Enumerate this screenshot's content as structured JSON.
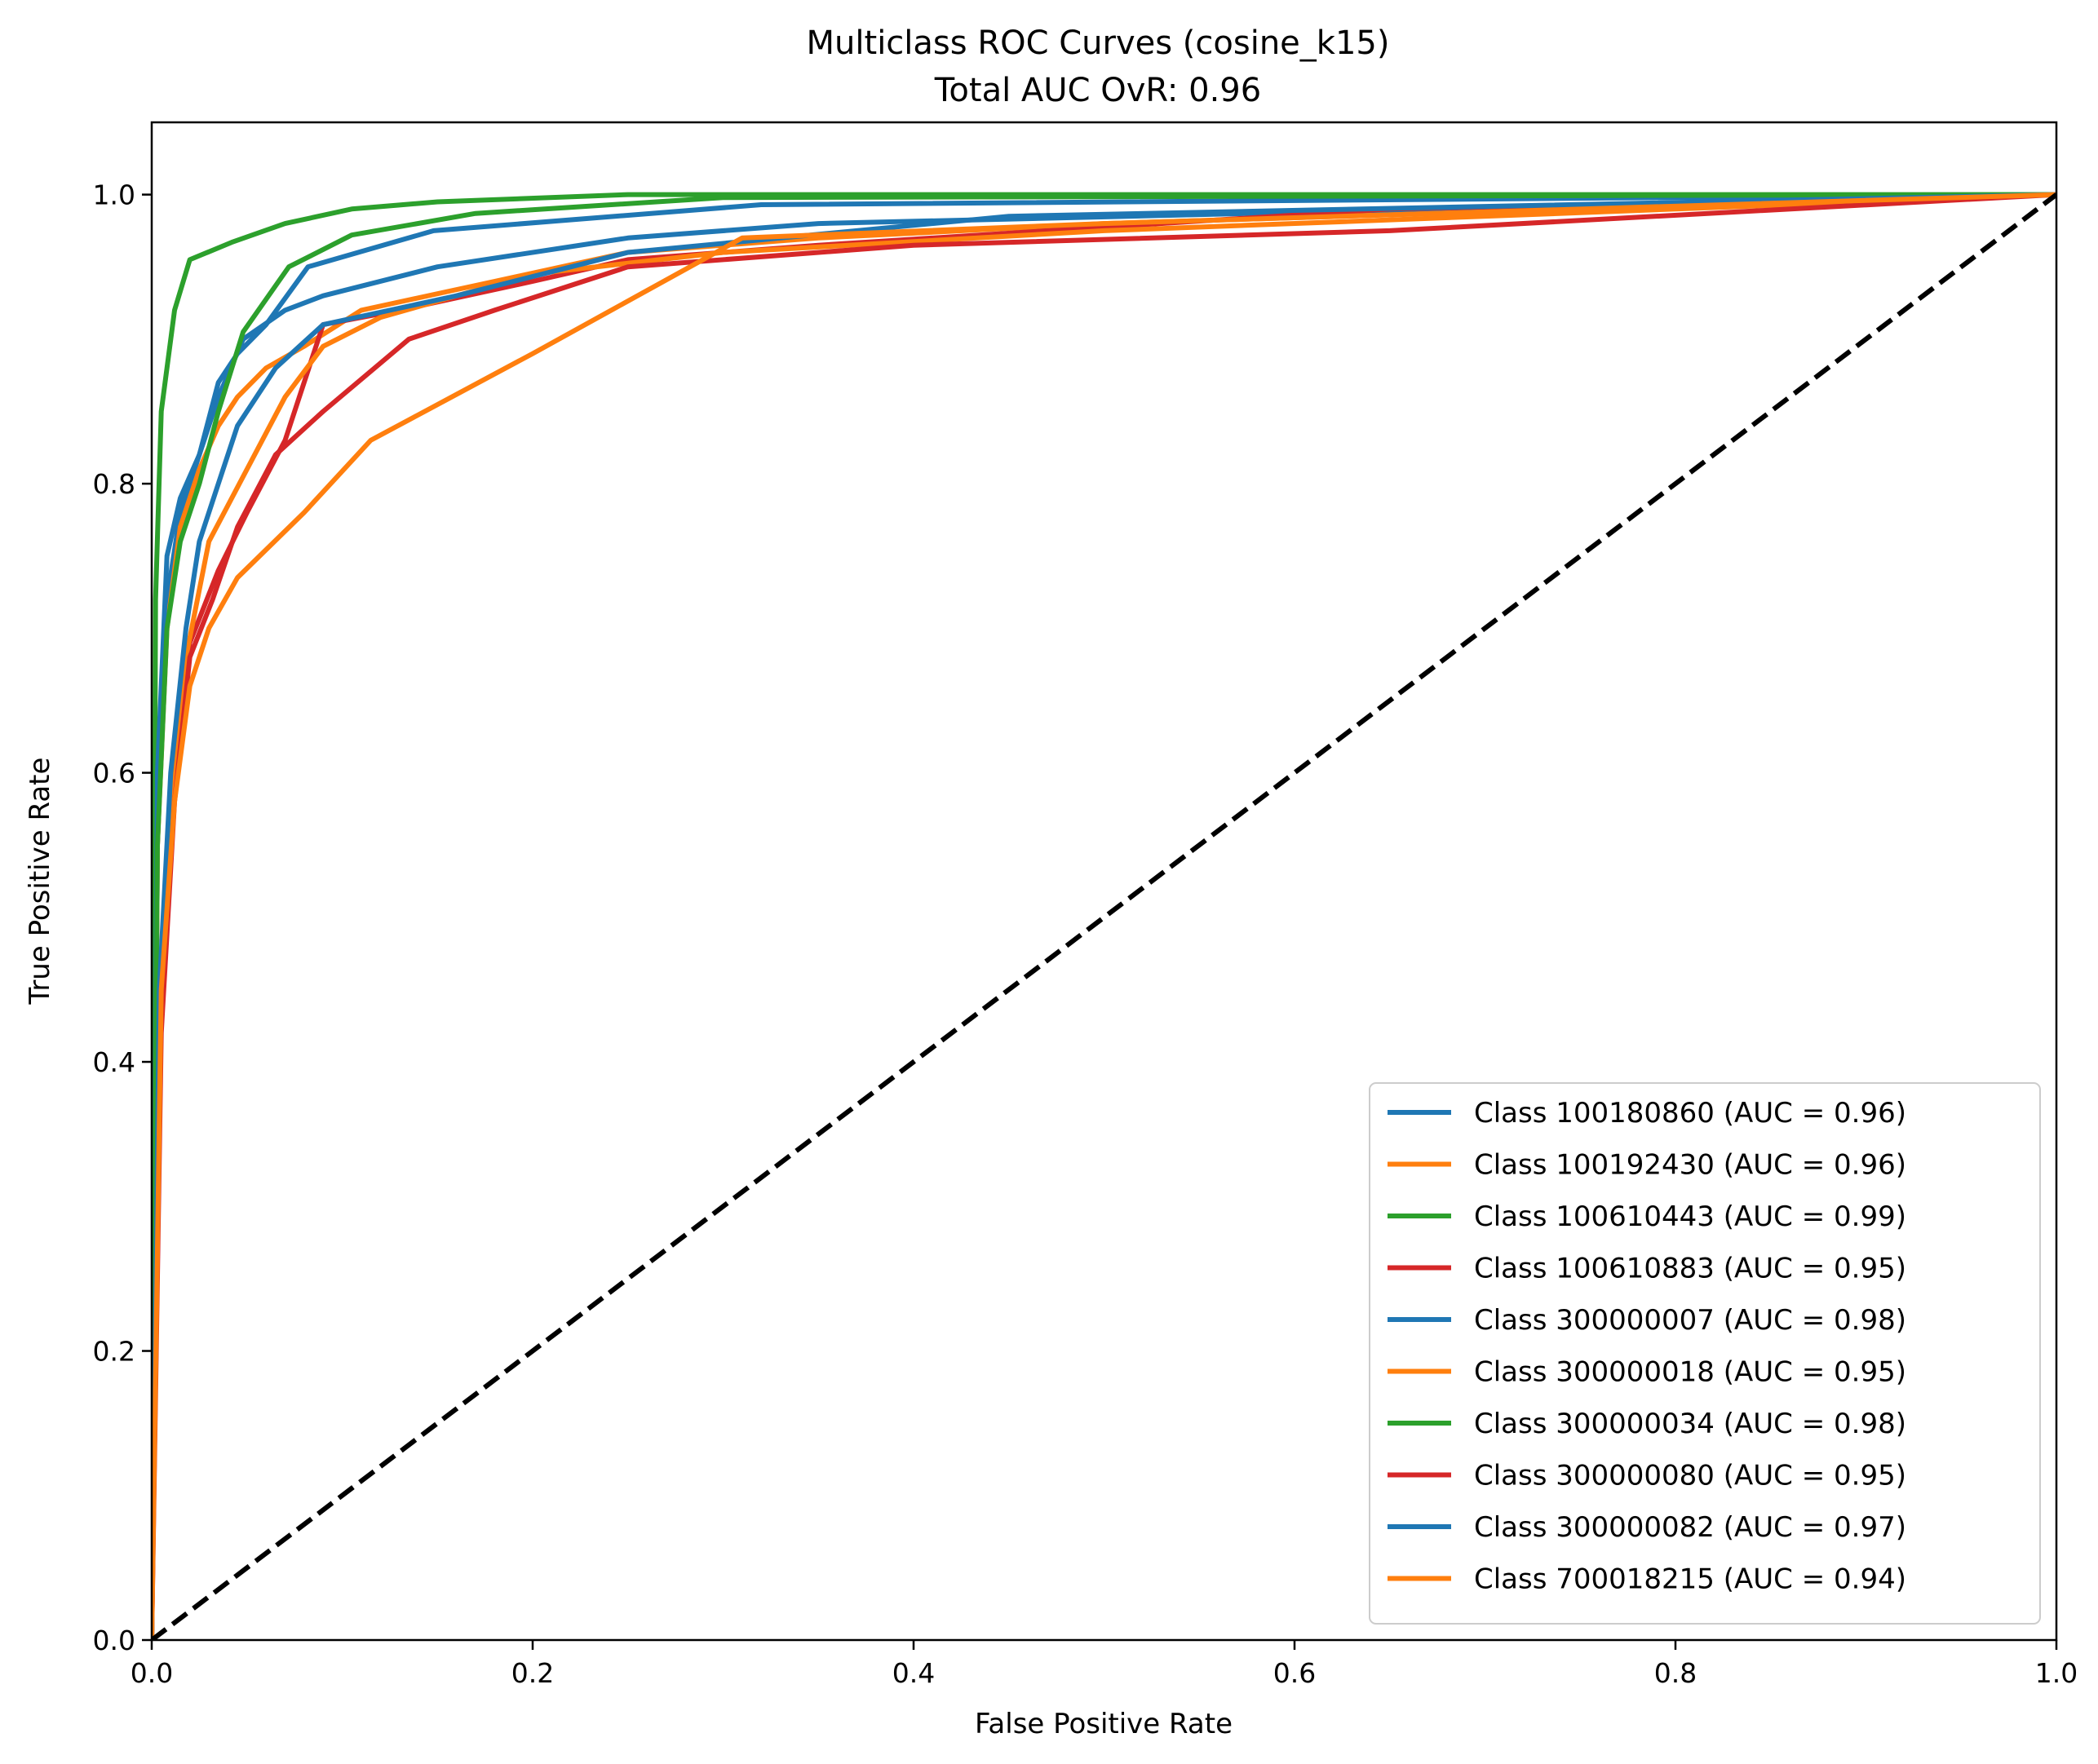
{
  "chart_data": {
    "type": "line",
    "title": "Multiclass ROC Curves (cosine_k15)",
    "subtitle": "Total AUC OvR: 0.96",
    "xlabel": "False Positive Rate",
    "ylabel": "True Positive Rate",
    "xlim": [
      0.0,
      1.0
    ],
    "ylim": [
      0.0,
      1.05
    ],
    "xticks": [
      "0.0",
      "0.2",
      "0.4",
      "0.6",
      "0.8",
      "1.0"
    ],
    "yticks": [
      "0.0",
      "0.2",
      "0.4",
      "0.6",
      "0.8",
      "1.0"
    ],
    "grid": false,
    "legend_position": "lower-right",
    "reference_line": {
      "x": [
        0,
        1
      ],
      "y": [
        0,
        1
      ],
      "color": "#000000",
      "style": "dashed"
    },
    "series": [
      {
        "name": "Class 100180860 (AUC = 0.96)",
        "color": "#1f77b4",
        "x": [
          0,
          0.003,
          0.008,
          0.015,
          0.025,
          0.035,
          0.048,
          0.07,
          0.09,
          0.15,
          0.25,
          0.35,
          1.0
        ],
        "y": [
          0,
          0.55,
          0.72,
          0.78,
          0.82,
          0.86,
          0.9,
          0.92,
          0.93,
          0.95,
          0.97,
          0.98,
          1.0
        ]
      },
      {
        "name": "Class 100192430 (AUC = 0.96)",
        "color": "#ff7f0e",
        "x": [
          0,
          0.003,
          0.008,
          0.015,
          0.025,
          0.035,
          0.045,
          0.06,
          0.08,
          0.11,
          0.18,
          0.25,
          0.35,
          0.5,
          1.0
        ],
        "y": [
          0,
          0.55,
          0.7,
          0.77,
          0.81,
          0.84,
          0.86,
          0.88,
          0.895,
          0.92,
          0.94,
          0.96,
          0.97,
          0.98,
          1.0
        ]
      },
      {
        "name": "Class 100610443 (AUC = 0.99)",
        "color": "#2ca02c",
        "x": [
          0,
          0.002,
          0.005,
          0.012,
          0.02,
          0.042,
          0.07,
          0.105,
          0.15,
          0.25,
          1.0
        ],
        "y": [
          0,
          0.72,
          0.85,
          0.92,
          0.955,
          0.967,
          0.98,
          0.99,
          0.995,
          1.0,
          1.0
        ]
      },
      {
        "name": "Class 100610883 (AUC = 0.95)",
        "color": "#d62728",
        "x": [
          0,
          0.004,
          0.01,
          0.02,
          0.035,
          0.05,
          0.07,
          0.09,
          0.13,
          0.2,
          0.25,
          0.35,
          0.65,
          1.0
        ],
        "y": [
          0,
          0.4,
          0.58,
          0.69,
          0.74,
          0.78,
          0.83,
          0.91,
          0.92,
          0.94,
          0.955,
          0.965,
          0.99,
          1.0
        ]
      },
      {
        "name": "Class 300000007 (AUC = 0.98)",
        "color": "#1f77b4",
        "x": [
          0,
          0.003,
          0.008,
          0.015,
          0.025,
          0.035,
          0.045,
          0.06,
          0.082,
          0.148,
          0.32,
          1.0
        ],
        "y": [
          0,
          0.6,
          0.75,
          0.79,
          0.82,
          0.87,
          0.89,
          0.91,
          0.95,
          0.975,
          0.993,
          1.0
        ]
      },
      {
        "name": "Class 300000018 (AUC = 0.95)",
        "color": "#ff7f0e",
        "x": [
          0,
          0.004,
          0.01,
          0.018,
          0.03,
          0.05,
          0.07,
          0.09,
          0.12,
          0.2,
          0.3,
          0.5,
          1.0
        ],
        "y": [
          0,
          0.42,
          0.57,
          0.68,
          0.76,
          0.81,
          0.86,
          0.895,
          0.915,
          0.945,
          0.96,
          0.975,
          1.0
        ]
      },
      {
        "name": "Class 300000034 (AUC = 0.98)",
        "color": "#2ca02c",
        "x": [
          0,
          0.003,
          0.008,
          0.015,
          0.025,
          0.035,
          0.048,
          0.072,
          0.105,
          0.17,
          0.3,
          1.0
        ],
        "y": [
          0,
          0.55,
          0.7,
          0.76,
          0.8,
          0.85,
          0.905,
          0.95,
          0.972,
          0.987,
          0.998,
          1.0
        ]
      },
      {
        "name": "Class 300000080 (AUC = 0.95)",
        "color": "#d62728",
        "x": [
          0,
          0.005,
          0.012,
          0.02,
          0.032,
          0.045,
          0.065,
          0.09,
          0.135,
          0.18,
          0.25,
          0.4,
          0.65,
          1.0
        ],
        "y": [
          0,
          0.42,
          0.58,
          0.68,
          0.72,
          0.77,
          0.82,
          0.85,
          0.9,
          0.92,
          0.95,
          0.965,
          0.975,
          1.0
        ]
      },
      {
        "name": "Class 300000082 (AUC = 0.97)",
        "color": "#1f77b4",
        "x": [
          0,
          0.004,
          0.01,
          0.018,
          0.025,
          0.035,
          0.045,
          0.065,
          0.09,
          0.16,
          0.25,
          0.45,
          1.0
        ],
        "y": [
          0,
          0.45,
          0.6,
          0.7,
          0.76,
          0.8,
          0.84,
          0.88,
          0.91,
          0.93,
          0.96,
          0.985,
          1.0
        ]
      },
      {
        "name": "Class 700018215 (AUC = 0.94)",
        "color": "#ff7f0e",
        "x": [
          0,
          0.005,
          0.012,
          0.02,
          0.03,
          0.045,
          0.08,
          0.115,
          0.2,
          0.31,
          0.5,
          1.0
        ],
        "y": [
          0,
          0.45,
          0.58,
          0.66,
          0.7,
          0.735,
          0.78,
          0.83,
          0.89,
          0.97,
          0.98,
          1.0
        ]
      }
    ]
  }
}
